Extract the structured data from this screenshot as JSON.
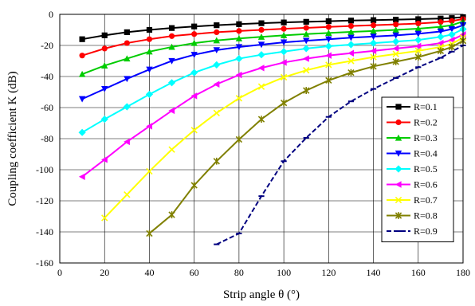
{
  "chart_data": {
    "type": "line",
    "xlabel": "Strip angle θ (°)",
    "ylabel": "Coupling coefficient K (dB)",
    "xlim": [
      0,
      180
    ],
    "ylim": [
      -160,
      0
    ],
    "xticks": [
      0,
      20,
      40,
      60,
      80,
      100,
      120,
      140,
      160,
      180
    ],
    "yticks": [
      0,
      -20,
      -40,
      -60,
      -80,
      -100,
      -120,
      -140,
      -160
    ],
    "grid": true,
    "legend_position": "right",
    "series": [
      {
        "name": "R=0.1",
        "color": "#000000",
        "marker": "square",
        "dash": "",
        "x": [
          10,
          20,
          30,
          40,
          50,
          60,
          70,
          80,
          90,
          100,
          110,
          120,
          130,
          140,
          150,
          160,
          170,
          175,
          180
        ],
        "y": [
          -16,
          -13.5,
          -11.5,
          -10,
          -8.8,
          -7.8,
          -7,
          -6.3,
          -5.7,
          -5.2,
          -4.8,
          -4.4,
          -4,
          -3.7,
          -3.4,
          -3.1,
          -2.7,
          -2.4,
          -1.8
        ]
      },
      {
        "name": "R=0.2",
        "color": "#ff0000",
        "marker": "circle",
        "dash": "",
        "x": [
          10,
          20,
          30,
          40,
          50,
          60,
          70,
          80,
          90,
          100,
          110,
          120,
          130,
          140,
          150,
          160,
          170,
          175,
          180
        ],
        "y": [
          -26.5,
          -22,
          -18.5,
          -16,
          -14,
          -12.7,
          -11.5,
          -10.7,
          -10,
          -9.3,
          -8.7,
          -8.1,
          -7.5,
          -7,
          -6.5,
          -5.9,
          -5,
          -4.3,
          -3
        ]
      },
      {
        "name": "R=0.3",
        "color": "#00cc00",
        "marker": "triangle-up",
        "dash": "",
        "x": [
          10,
          20,
          30,
          40,
          50,
          60,
          70,
          80,
          90,
          100,
          110,
          120,
          130,
          140,
          150,
          160,
          170,
          175,
          180
        ],
        "y": [
          -38.5,
          -33,
          -28.5,
          -24,
          -21,
          -18.5,
          -16.8,
          -15.5,
          -14.5,
          -13.5,
          -12.7,
          -12,
          -11.3,
          -10.7,
          -10,
          -9.2,
          -8,
          -7,
          -4.5
        ]
      },
      {
        "name": "R=0.4",
        "color": "#0000ff",
        "marker": "triangle-down",
        "dash": "",
        "x": [
          10,
          20,
          30,
          40,
          50,
          60,
          70,
          80,
          90,
          100,
          110,
          120,
          130,
          140,
          150,
          160,
          170,
          175,
          180
        ],
        "y": [
          -54.5,
          -48,
          -41.5,
          -35.5,
          -30,
          -26,
          -23,
          -21,
          -19.5,
          -18,
          -17,
          -16,
          -15,
          -14.3,
          -13.5,
          -12.5,
          -11,
          -9.5,
          -7
        ]
      },
      {
        "name": "R=0.5",
        "color": "#00ffff",
        "marker": "diamond",
        "dash": "",
        "x": [
          10,
          20,
          30,
          40,
          50,
          60,
          70,
          80,
          90,
          100,
          110,
          120,
          130,
          140,
          150,
          160,
          170,
          175,
          180
        ],
        "y": [
          -76,
          -67.5,
          -59.5,
          -51.5,
          -44,
          -37.5,
          -32.5,
          -28.5,
          -26,
          -24,
          -22,
          -20.5,
          -19.5,
          -18.5,
          -17.5,
          -16.5,
          -14.5,
          -13,
          -9.5
        ]
      },
      {
        "name": "R=0.6",
        "color": "#ff00ff",
        "marker": "triangle-left",
        "dash": "",
        "x": [
          10,
          20,
          30,
          40,
          50,
          60,
          70,
          80,
          90,
          100,
          110,
          120,
          130,
          140,
          150,
          160,
          170,
          175,
          180
        ],
        "y": [
          -104.5,
          -93.5,
          -82,
          -72,
          -62,
          -52.5,
          -45,
          -39,
          -34.5,
          -31,
          -28.5,
          -26.5,
          -25,
          -23.5,
          -22,
          -20.5,
          -18.5,
          -16.5,
          -13
        ]
      },
      {
        "name": "R=0.7",
        "color": "#ffff00",
        "marker": "x",
        "dash": "",
        "x": [
          20,
          30,
          40,
          50,
          60,
          70,
          80,
          90,
          100,
          110,
          120,
          130,
          140,
          150,
          160,
          170,
          175,
          180
        ],
        "y": [
          -131,
          -116,
          -101,
          -87,
          -74.5,
          -63.5,
          -54,
          -46.5,
          -40.5,
          -36,
          -32.5,
          -30,
          -27.5,
          -25.5,
          -23.5,
          -21,
          -19,
          -15
        ]
      },
      {
        "name": "R=0.8",
        "color": "#808000",
        "marker": "star",
        "dash": "",
        "x": [
          40,
          50,
          60,
          70,
          80,
          90,
          100,
          110,
          120,
          130,
          140,
          150,
          160,
          170,
          175,
          180
        ],
        "y": [
          -141,
          -129,
          -110,
          -94.5,
          -80.5,
          -67.5,
          -57,
          -49,
          -42.5,
          -37.5,
          -33.5,
          -30.5,
          -27.5,
          -23.5,
          -21,
          -17
        ]
      },
      {
        "name": "R=0.9",
        "color": "#000080",
        "marker": "dash",
        "dash": "6,3",
        "x": [
          70,
          80,
          90,
          100,
          110,
          120,
          130,
          140,
          150,
          160,
          170,
          175,
          180
        ],
        "y": [
          -148,
          -141,
          -117,
          -94.5,
          -79.5,
          -66,
          -56,
          -48,
          -41,
          -34,
          -28,
          -24,
          -20
        ]
      }
    ]
  }
}
